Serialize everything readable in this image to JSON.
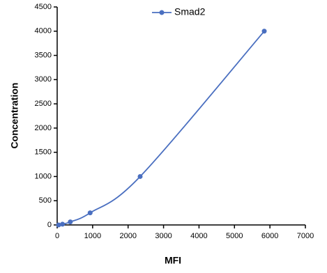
{
  "chart_data": {
    "type": "line",
    "x_label": "MFI",
    "y_label": "Concentration",
    "x": [
      40,
      150,
      370,
      930,
      2340,
      5840
    ],
    "series": [
      {
        "name": "Smad2",
        "color": "#4a6fc0",
        "values": [
          0,
          15.6,
          62.5,
          250,
          1000,
          4000
        ]
      }
    ],
    "xlim": [
      0,
      7000
    ],
    "xticks": [
      0,
      1000,
      2000,
      3000,
      4000,
      5000,
      6000,
      7000
    ],
    "ylim": [
      0,
      4500
    ],
    "yticks": [
      0,
      500,
      1000,
      1500,
      2000,
      2500,
      3000,
      3500,
      4000,
      4500
    ],
    "smooth": true,
    "legend": "top"
  }
}
